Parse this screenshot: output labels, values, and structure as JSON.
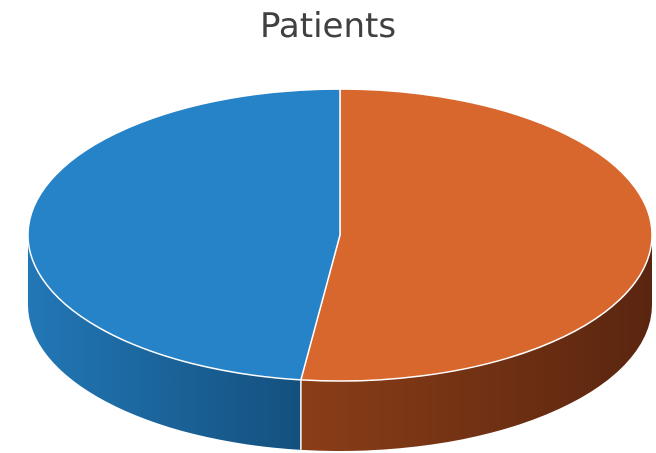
{
  "chart_data": {
    "type": "pie",
    "title": "Patients",
    "slices": [
      {
        "value": 52,
        "color": "#D7672D"
      },
      {
        "value": 48,
        "color": "#2783C7"
      }
    ],
    "style": "3d",
    "legend": "none",
    "data_labels": false
  }
}
